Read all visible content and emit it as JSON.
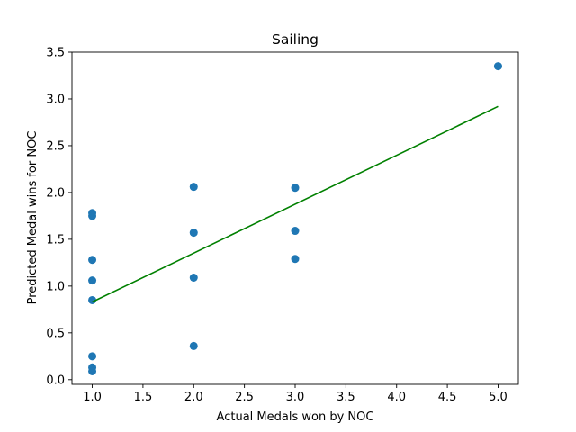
{
  "chart_data": {
    "type": "scatter",
    "title": "Sailing",
    "xlabel": "Actual Medals won by NOC",
    "ylabel": "Predicted Medal wins for NOC",
    "xlim": [
      0.8,
      5.2
    ],
    "ylim": [
      -0.05,
      3.5
    ],
    "xticks": [
      "1.0",
      "1.5",
      "2.0",
      "2.5",
      "3.0",
      "3.5",
      "4.0",
      "4.5",
      "5.0"
    ],
    "yticks": [
      "0.0",
      "0.5",
      "1.0",
      "1.5",
      "2.0",
      "2.5",
      "3.0",
      "3.5"
    ],
    "grid": false,
    "points": [
      {
        "x": 1.0,
        "y": 1.78
      },
      {
        "x": 1.0,
        "y": 1.75
      },
      {
        "x": 1.0,
        "y": 1.28
      },
      {
        "x": 1.0,
        "y": 1.06
      },
      {
        "x": 1.0,
        "y": 0.85
      },
      {
        "x": 1.0,
        "y": 0.25
      },
      {
        "x": 1.0,
        "y": 0.13
      },
      {
        "x": 1.0,
        "y": 0.09
      },
      {
        "x": 2.0,
        "y": 2.06
      },
      {
        "x": 2.0,
        "y": 1.57
      },
      {
        "x": 2.0,
        "y": 1.09
      },
      {
        "x": 2.0,
        "y": 0.36
      },
      {
        "x": 3.0,
        "y": 2.05
      },
      {
        "x": 3.0,
        "y": 1.59
      },
      {
        "x": 3.0,
        "y": 1.29
      },
      {
        "x": 5.0,
        "y": 3.35
      }
    ],
    "fit_line": {
      "x": [
        1.0,
        5.0
      ],
      "y": [
        0.83,
        2.92
      ]
    },
    "colors": {
      "points": "#1f77b4",
      "fit_line": "#008000"
    }
  }
}
